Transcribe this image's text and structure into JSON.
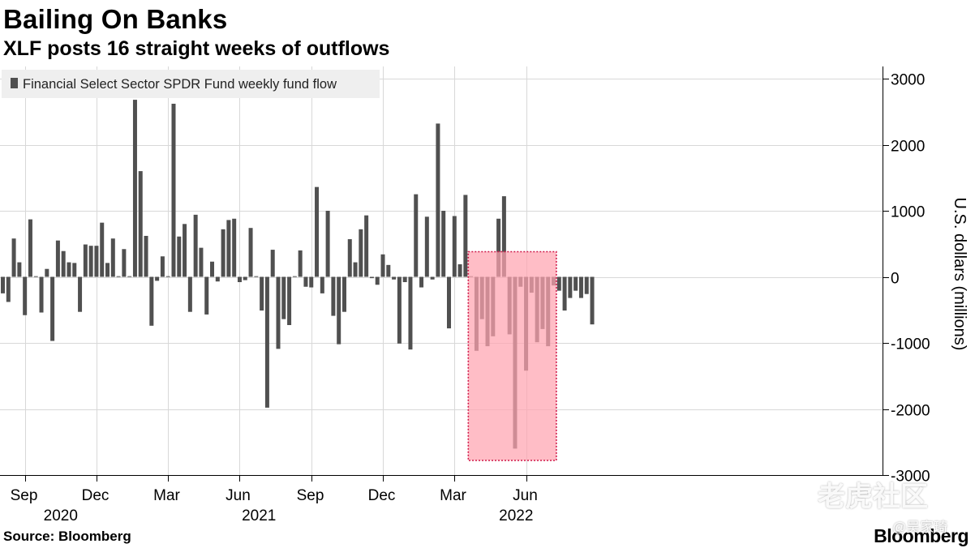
{
  "header": {
    "title": "Bailing On Banks",
    "subtitle": "XLF posts 16 straight weeks of outflows"
  },
  "footer": {
    "source": "Source: Bloomberg",
    "brand": "Bloomberg"
  },
  "watermark": {
    "main": "老虎社区",
    "sub": "@吴家琦"
  },
  "colors": {
    "bar": "#505050",
    "highlight_fill": "#ffa3b0",
    "highlight_border": "#d01a4a",
    "grid": "#d8d8d8",
    "legend_bg": "#efefef"
  },
  "chart_data": {
    "type": "bar",
    "title": "Bailing On Banks",
    "subtitle": "XLF posts 16 straight weeks of outflows",
    "series": [
      {
        "name": "Financial Select Sector SPDR Fund weekly fund flow",
        "values": [
          -250,
          -380,
          580,
          220,
          -580,
          870,
          10,
          -540,
          120,
          -970,
          550,
          390,
          220,
          210,
          -530,
          490,
          470,
          470,
          820,
          210,
          580,
          10,
          420,
          10,
          2680,
          1600,
          620,
          -740,
          -60,
          310,
          10,
          2620,
          610,
          800,
          -530,
          940,
          440,
          -570,
          230,
          -70,
          720,
          860,
          880,
          -80,
          -50,
          740,
          10,
          -510,
          -1980,
          410,
          -1090,
          -640,
          -730,
          10,
          400,
          -150,
          -160,
          1360,
          -250,
          1000,
          -590,
          -1020,
          -530,
          570,
          220,
          720,
          930,
          -20,
          -120,
          340,
          180,
          -40,
          -1010,
          -80,
          -1100,
          1250,
          -160,
          910,
          -40,
          2320,
          1000,
          -780,
          920,
          190,
          1240,
          10,
          -1120,
          -640,
          -1050,
          -900,
          880,
          1220,
          -870,
          -2600,
          -150,
          -1420,
          -240,
          -990,
          -790,
          -1050,
          -130,
          -210,
          -510,
          -320,
          -210,
          -320,
          -260,
          -720
        ]
      }
    ],
    "x_ticks": [
      {
        "label": "Sep",
        "index": 4
      },
      {
        "label": "Dec",
        "index": 17
      },
      {
        "label": "Mar",
        "index": 30
      },
      {
        "label": "Jun",
        "index": 43
      },
      {
        "label": "Sep",
        "index": 56
      },
      {
        "label": "Dec",
        "index": 69
      },
      {
        "label": "Mar",
        "index": 82
      },
      {
        "label": "Jun",
        "index": 95
      }
    ],
    "years": [
      {
        "label": "2020",
        "index": 10.5
      },
      {
        "label": "2021",
        "index": 46.5
      },
      {
        "label": "2022",
        "index": 93.2
      }
    ],
    "yticks": [
      3000,
      2000,
      1000,
      0,
      -1000,
      -2000,
      -3000
    ],
    "ytick_labels": [
      "3000",
      "2000",
      "1000",
      "0",
      "-1000",
      "-2000",
      "-3000"
    ],
    "ylim": [
      -3000,
      3000
    ],
    "ylabel": "U.S. dollars (millions)",
    "xlabel": "",
    "legend": "Financial Select Sector SPDR Fund weekly fund flow",
    "legend_position": "top-left",
    "highlight": {
      "from_index": 84.5,
      "to_index": 100.5,
      "y_top": 380,
      "y_bottom": -2780
    }
  }
}
